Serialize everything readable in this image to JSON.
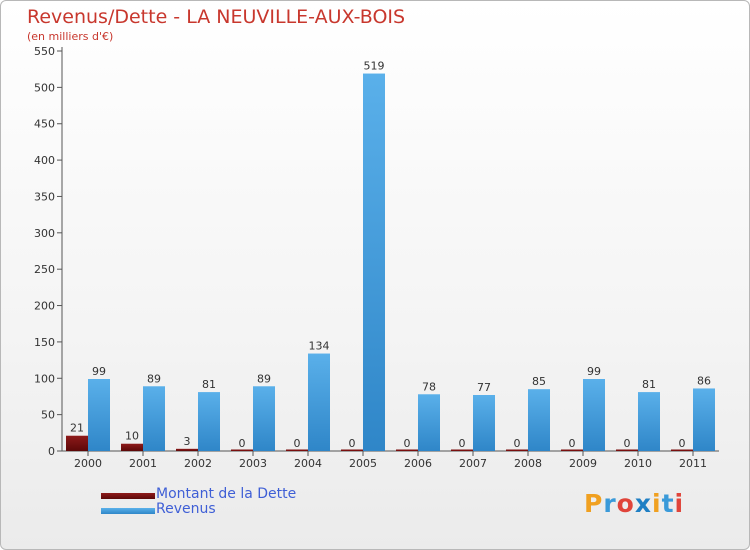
{
  "title": "Revenus/Dette - LA NEUVILLE-AUX-BOIS",
  "subtitle": "(en milliers d'€)",
  "chart_data": {
    "type": "bar",
    "title": "Revenus/Dette - LA NEUVILLE-AUX-BOIS",
    "subtitle": "(en milliers d'€)",
    "xlabel": "",
    "ylabel": "",
    "ylim": [
      0,
      550
    ],
    "yticks": [
      0,
      50,
      100,
      150,
      200,
      250,
      300,
      350,
      400,
      450,
      500,
      550
    ],
    "grid": false,
    "legend_position": "bottom-left",
    "categories": [
      "2000",
      "2001",
      "2002",
      "2003",
      "2004",
      "2005",
      "2006",
      "2007",
      "2008",
      "2009",
      "2010",
      "2011"
    ],
    "series": [
      {
        "name": "Montant de la Dette",
        "color": "#7a0f0f",
        "values": [
          21,
          10,
          3,
          0,
          0,
          0,
          0,
          0,
          0,
          0,
          0,
          0
        ],
        "labels": [
          "21",
          "10",
          "3",
          "0",
          "0",
          "0",
          "0",
          "0",
          "0",
          "0",
          "0",
          "0"
        ]
      },
      {
        "name": "Revenus",
        "color": "#4aa3e0",
        "values": [
          99,
          89,
          81,
          89,
          134,
          519,
          78,
          77,
          85,
          99,
          81,
          86
        ],
        "labels": [
          "99",
          "89",
          "81",
          "89",
          "134",
          "519",
          "78",
          "77",
          "85",
          "99",
          "81",
          "86"
        ]
      }
    ]
  },
  "legend": [
    {
      "label": "Montant de la Dette",
      "color": "#7a0f0f"
    },
    {
      "label": "Revenus",
      "color": "#4aa3e0"
    }
  ],
  "logo": {
    "text": "Proxiti",
    "letters": [
      "P",
      "r",
      "o",
      "x",
      "i",
      "t",
      "i"
    ],
    "colors": [
      "#f0a020",
      "#3a9ad9",
      "#e0443a",
      "#1f7fc4",
      "#f0a020",
      "#3a9ad9",
      "#e0443a"
    ]
  }
}
